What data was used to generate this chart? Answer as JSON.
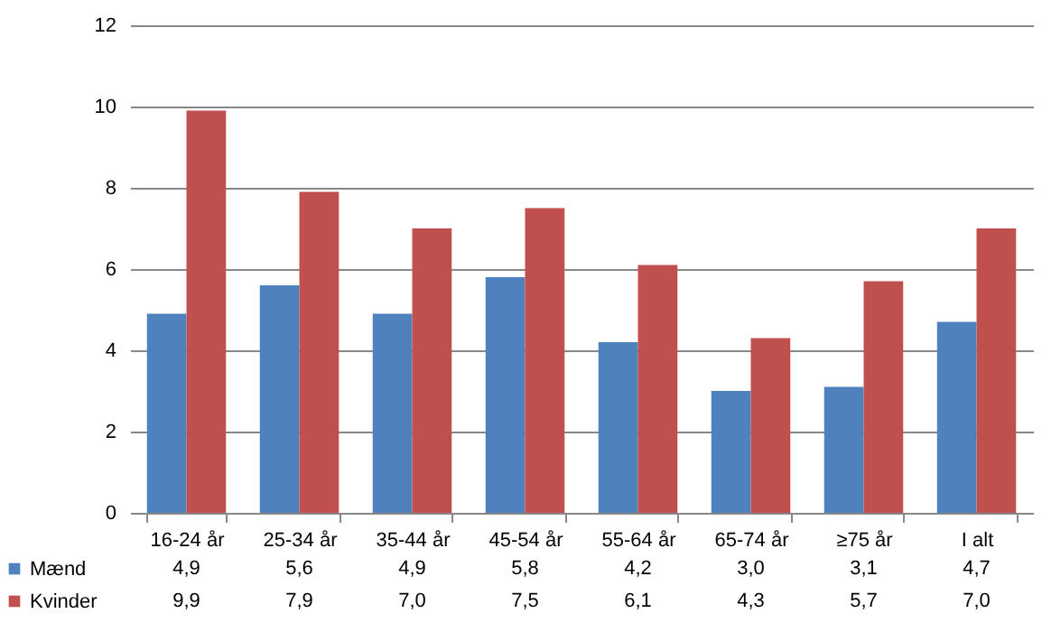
{
  "chart_data": {
    "type": "bar",
    "categories": [
      "16-24 år",
      "25-34 år",
      "35-44 år",
      "45-54 år",
      "55-64 år",
      "65-74 år",
      "≥75 år",
      "I alt"
    ],
    "series": [
      {
        "name": "Mænd",
        "color": "#4f81bd",
        "values": [
          4.9,
          5.6,
          4.9,
          5.8,
          4.2,
          3.0,
          3.1,
          4.7
        ],
        "value_labels": [
          "4,9",
          "5,6",
          "4,9",
          "5,8",
          "4,2",
          "3,0",
          "3,1",
          "4,7"
        ]
      },
      {
        "name": "Kvinder",
        "color": "#c0504d",
        "values": [
          9.9,
          7.9,
          7.0,
          7.5,
          6.1,
          4.3,
          5.7,
          7.0
        ],
        "value_labels": [
          "9,9",
          "7,9",
          "7,0",
          "7,5",
          "6,1",
          "4,3",
          "5,7",
          "7,0"
        ]
      }
    ],
    "ylim": [
      0,
      12
    ],
    "yticks": [
      0,
      2,
      4,
      6,
      8,
      10,
      12
    ],
    "grid": "y",
    "legend": "bottom"
  }
}
